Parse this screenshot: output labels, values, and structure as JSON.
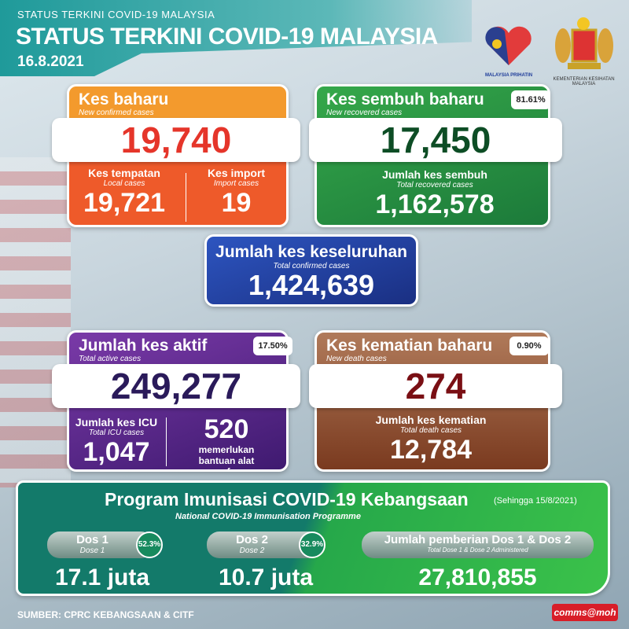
{
  "header": {
    "subtitle": "STATUS TERKINI COVID-19 MALAYSIA",
    "title": "STATUS TERKINI COVID-19 MALAYSIA",
    "date": "16.8.2021"
  },
  "logos": {
    "malaysia_prihatin": "MALAYSIA PRIHATIN",
    "ministry": "KEMENTERIAN KESIHATAN MALAYSIA"
  },
  "new_cases": {
    "title": "Kes baharu",
    "subtitle": "New confirmed cases",
    "value": "19,740",
    "local_label": "Kes tempatan",
    "local_sub": "Local cases",
    "local_value": "19,721",
    "import_label": "Kes import",
    "import_sub": "Import cases",
    "import_value": "19",
    "color": "#f07a2a"
  },
  "recovered": {
    "title": "Kes sembuh baharu",
    "subtitle": "New recovered cases",
    "percent": "81.61%",
    "value": "17,450",
    "total_label": "Jumlah kes sembuh",
    "total_sub": "Total recovered cases",
    "total_value": "1,162,578",
    "color": "#1f8a3c"
  },
  "total": {
    "title": "Jumlah kes keseluruhan",
    "subtitle": "Total confirmed cases",
    "value": "1,424,639",
    "color": "#1e3c9a"
  },
  "active": {
    "title": "Jumlah kes aktif",
    "subtitle": "Total active cases",
    "percent": "17.50%",
    "value": "249,277",
    "icu_label": "Jumlah kes ICU",
    "icu_sub": "Total ICU cases",
    "icu_value": "1,047",
    "vent_value": "520",
    "vent_label": "memerlukan bantuan alat pernafasan",
    "color": "#5a2a8a"
  },
  "deaths": {
    "title": "Kes kematian baharu",
    "subtitle": "New death cases",
    "percent": "0.90%",
    "value": "274",
    "total_label": "Jumlah kes kematian",
    "total_sub": "Total death cases",
    "total_value": "12,784",
    "color": "#8a4a30"
  },
  "immunisation": {
    "title": "Program Imunisasi COVID-19 Kebangsaan",
    "asof": "(Sehingga 15/8/2021)",
    "subtitle": "National COVID-19 Immunisation Programme",
    "dose1": {
      "label": "Dos 1",
      "sub": "Dose 1",
      "percent": "52.3%",
      "value": "17.1 juta"
    },
    "dose2": {
      "label": "Dos 2",
      "sub": "Dose 2",
      "percent": "32.9%",
      "value": "10.7 juta"
    },
    "total": {
      "label": "Jumlah pemberian Dos 1 & Dos 2",
      "sub": "Total Dose 1 & Dose 2 Administered",
      "value": "27,810,855"
    }
  },
  "footer": {
    "source": "SUMBER: CPRC KEBANGSAAN & CITF",
    "brand": "comms@moh"
  }
}
